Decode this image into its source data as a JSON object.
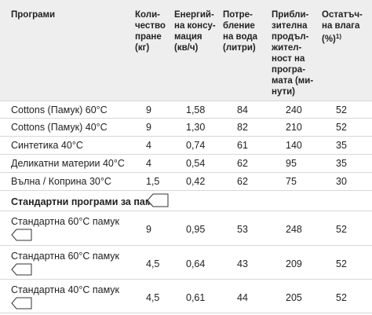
{
  "headers": {
    "program": "Програми",
    "quantity": "Коли-\nчество\nпране\n(кг)",
    "energy": "Енергий-\nна консу-\nмация\n(кв/ч)",
    "water": "Потре-\nбление\nна вода\n(литри)",
    "duration": "Прибли-\nзителна\nпродъл-\nжител-\nност на\nпрогра-\nмата (ми-\nнути)",
    "moisture": "Остатъч-\nна влага\n(%)",
    "moisture_note": "1)"
  },
  "rows": [
    {
      "program": "Cottons (Памук) 60°C",
      "quantity": "9",
      "energy": "1,58",
      "water": "84",
      "duration": "240",
      "moisture": "52"
    },
    {
      "program": "Cottons (Памук) 40°C",
      "quantity": "9",
      "energy": "1,30",
      "water": "82",
      "duration": "210",
      "moisture": "52"
    },
    {
      "program": "Синтетика 40°C",
      "quantity": "4",
      "energy": "0,74",
      "water": "61",
      "duration": "140",
      "moisture": "35"
    },
    {
      "program": "Деликатни материи 40°C",
      "quantity": "4",
      "energy": "0,54",
      "water": "62",
      "duration": "95",
      "moisture": "35"
    },
    {
      "program": "Вълна / Коприна 30°C",
      "quantity": "1,5",
      "energy": "0,42",
      "water": "62",
      "duration": "75",
      "moisture": "30"
    }
  ],
  "section_title": "Стандартни програми за памук",
  "standard_rows": [
    {
      "program": "Стандартна 60°C памук",
      "quantity": "9",
      "energy": "0,95",
      "water": "53",
      "duration": "248",
      "moisture": "52"
    },
    {
      "program": "Стандартна 60°C памук",
      "quantity": "4,5",
      "energy": "0,64",
      "water": "43",
      "duration": "209",
      "moisture": "52"
    },
    {
      "program": "Стандартна 40°C памук",
      "quantity": "4,5",
      "energy": "0,61",
      "water": "44",
      "duration": "205",
      "moisture": "52"
    }
  ]
}
